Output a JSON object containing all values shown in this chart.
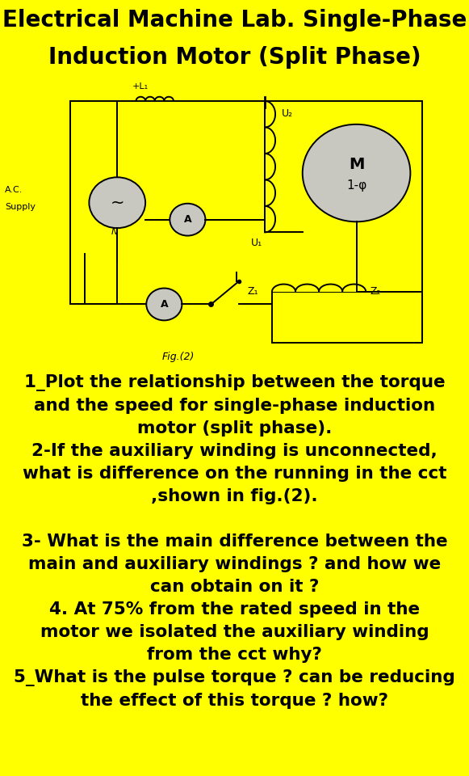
{
  "title_line1": "Electrical Machine Lab. Single-Phase",
  "title_line2": "Induction Motor (Split Phase)",
  "title_bg": "#FFFF00",
  "title_fontsize": 20,
  "title_fontweight": "bold",
  "circuit_bg": "#C8C8C0",
  "questions_bg": "#FFFF00",
  "q1": "1_Plot the relationship between the torque\nand the speed for single-phase induction\nmotor (split phase).",
  "q2": "2-If the auxiliary winding is unconnected,\nwhat is difference on the running in the cct\n,shown in fig.(2).",
  "q3": "3- What is the main difference between the\nmain and auxiliary windings ? and how we\ncan obtain on it ?",
  "q4": "4. At 75% from the rated speed in the\nmotor we isolated the auxiliary winding\nfrom the cct why?",
  "q5": "5_What is the pulse torque ? can be reducing\nthe effect of this torque ? how?",
  "fig_label": "Fig.(2)",
  "question_fontsize": 15.5,
  "question_color": "#000000"
}
